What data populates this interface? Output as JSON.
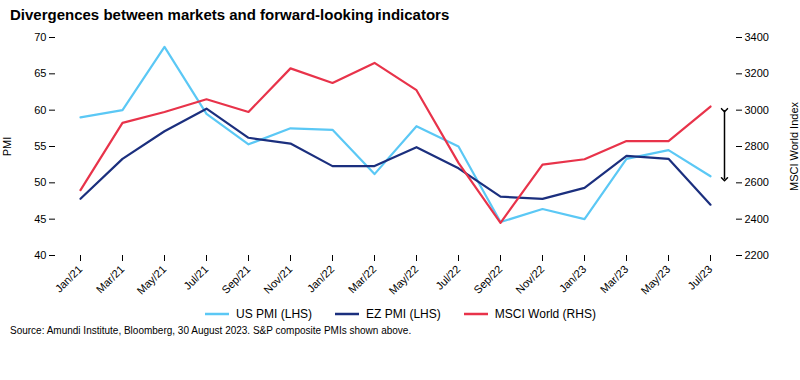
{
  "chart_data": {
    "type": "line",
    "title": "Divergences between markets and forward-looking indicators",
    "source": "Source: Amundi Institute, Bloomberg, 30 August 2023. S&P composite PMIs shown above.",
    "categories": [
      "Jan/21",
      "Mar/21",
      "May/21",
      "Jul/21",
      "Sep/21",
      "Nov/21",
      "Jan/22",
      "Mar/22",
      "May/22",
      "Jul/22",
      "Sep/22",
      "Nov/22",
      "Jan/23",
      "Mar/23",
      "May/23",
      "Jul/23"
    ],
    "series": [
      {
        "name": "US PMI (LHS)",
        "color": "#5BC8F5",
        "values": [
          59.0,
          60.0,
          68.7,
          59.5,
          55.3,
          57.5,
          57.3,
          51.2,
          57.8,
          55.0,
          44.6,
          46.4,
          45.0,
          53.3,
          54.5,
          50.9
        ]
      },
      {
        "name": "EZ PMI (LHS)",
        "color": "#1B2F7E",
        "values": [
          47.8,
          53.3,
          57.1,
          60.2,
          56.2,
          55.4,
          52.3,
          52.3,
          54.9,
          52.0,
          48.1,
          47.8,
          49.3,
          53.7,
          53.3,
          47.0
        ]
      },
      {
        "name": "MSCI World (RHS)",
        "color": "#E8334A",
        "axis": "y2",
        "values": [
          2560,
          2930,
          2990,
          3060,
          2990,
          3230,
          3150,
          3260,
          3110,
          2710,
          2380,
          2700,
          2730,
          2830,
          2830,
          3020
        ]
      }
    ],
    "ylabel": "PMI",
    "y2label": "MSCI World Index",
    "ylim": [
      40,
      70
    ],
    "yticks": [
      40,
      45,
      50,
      55,
      60,
      65,
      70
    ],
    "y2lim": [
      2200,
      3400
    ],
    "y2ticks": [
      2200,
      2400,
      2600,
      2800,
      3000,
      3200,
      3400
    ],
    "arrow": {
      "axis": "y2",
      "from": 3000,
      "to": 2620
    },
    "grid": false,
    "legend": "bottom"
  }
}
